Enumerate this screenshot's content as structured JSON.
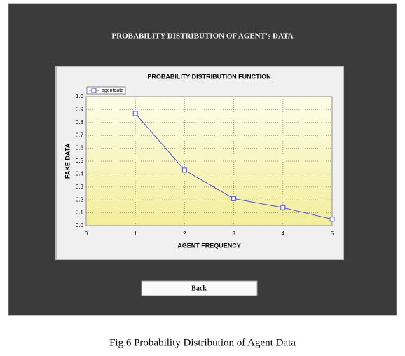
{
  "header": {
    "title": "PROBABILITY DISTRIBUTION OF AGENT's DATA"
  },
  "chart_data": {
    "type": "line",
    "title": "PROBABILITY DISTRIBUTION FUNCTION",
    "x_label": "AGENT FREQUENCY",
    "y_label": "FAKE DATA",
    "x": [
      1,
      2,
      3,
      4,
      5
    ],
    "series": [
      {
        "name": "agentdata",
        "color": "#5050d8",
        "values": [
          0.87,
          0.43,
          0.21,
          0.14,
          0.05
        ]
      }
    ],
    "xlim": [
      0,
      5
    ],
    "xticks": [
      0,
      1,
      2,
      3,
      4,
      5
    ],
    "ylim": [
      0,
      1
    ],
    "yticks": [
      {
        "value": 0,
        "label": "0.0"
      },
      0.1,
      0.2,
      0.3,
      0.4,
      0.5,
      0.6,
      0.7,
      0.8,
      0.9,
      {
        "value": 1,
        "label": "1.0"
      }
    ],
    "grid": true,
    "legend": "top-left"
  },
  "button": {
    "label": "Back"
  },
  "caption": "Fig.6 Probability Distribution of Agent Data"
}
